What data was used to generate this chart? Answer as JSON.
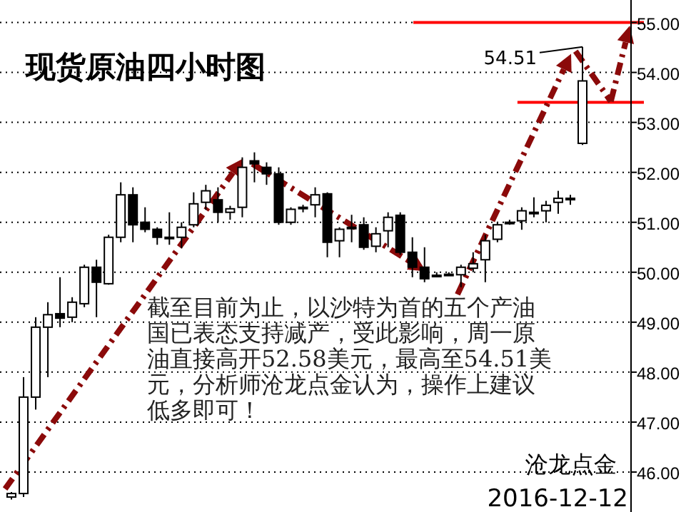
{
  "chart_data": {
    "type": "candlestick",
    "title": "现货原油四小时图",
    "categories": [
      null,
      null,
      null,
      null,
      null,
      null,
      null,
      null,
      null,
      null,
      null,
      null,
      null,
      null,
      null,
      null,
      null,
      null,
      null,
      null,
      null,
      null,
      null,
      null,
      null,
      null,
      null,
      null,
      null,
      null,
      null,
      null,
      null,
      null,
      null,
      null,
      null,
      null,
      null,
      null,
      null,
      null,
      null,
      null,
      null,
      null,
      null,
      null
    ],
    "ohlc": [
      [
        45.5,
        45.6,
        45.45,
        45.57
      ],
      [
        45.57,
        47.9,
        45.5,
        47.5
      ],
      [
        47.5,
        49.1,
        47.25,
        48.9
      ],
      [
        48.9,
        49.4,
        47.9,
        49.15
      ],
      [
        49.17,
        49.9,
        48.9,
        49.08
      ],
      [
        49.1,
        49.5,
        49.0,
        49.4
      ],
      [
        49.37,
        50.15,
        49.3,
        50.1
      ],
      [
        50.1,
        50.25,
        49.1,
        49.8
      ],
      [
        49.77,
        50.75,
        49.75,
        50.7
      ],
      [
        50.7,
        51.8,
        50.6,
        51.55
      ],
      [
        51.55,
        51.7,
        50.6,
        50.95
      ],
      [
        51.0,
        51.3,
        50.8,
        50.86
      ],
      [
        50.86,
        50.9,
        50.55,
        50.7
      ],
      [
        50.7,
        51.2,
        50.55,
        50.68
      ],
      [
        50.7,
        51.0,
        50.48,
        50.9
      ],
      [
        50.95,
        51.6,
        50.9,
        51.37
      ],
      [
        51.4,
        51.75,
        51.25,
        51.63
      ],
      [
        51.45,
        51.7,
        51.0,
        51.2
      ],
      [
        51.2,
        51.33,
        51.05,
        51.27
      ],
      [
        51.3,
        52.3,
        51.1,
        52.1
      ],
      [
        52.23,
        52.4,
        51.8,
        52.17
      ],
      [
        52.1,
        52.2,
        51.75,
        51.97
      ],
      [
        51.97,
        52.1,
        50.95,
        51.0
      ],
      [
        51.0,
        51.3,
        50.95,
        51.26
      ],
      [
        51.28,
        51.35,
        51.2,
        51.3
      ],
      [
        51.35,
        51.7,
        51.1,
        51.55
      ],
      [
        51.57,
        51.6,
        50.3,
        50.6
      ],
      [
        50.63,
        50.9,
        50.3,
        50.86
      ],
      [
        50.9,
        51.15,
        50.6,
        50.88
      ],
      [
        50.95,
        51.1,
        50.45,
        50.5
      ],
      [
        50.52,
        50.9,
        50.4,
        50.77
      ],
      [
        50.83,
        51.2,
        50.5,
        51.1
      ],
      [
        51.14,
        51.2,
        50.35,
        50.4
      ],
      [
        50.4,
        50.7,
        49.9,
        50.1
      ],
      [
        50.1,
        50.5,
        49.8,
        49.87
      ],
      [
        49.94,
        50.0,
        49.9,
        49.93
      ],
      [
        49.95,
        50.0,
        49.93,
        49.96
      ],
      [
        49.95,
        50.15,
        49.7,
        50.1
      ],
      [
        50.08,
        50.4,
        50.0,
        50.17
      ],
      [
        50.25,
        50.75,
        49.8,
        50.63
      ],
      [
        50.66,
        51.0,
        50.6,
        50.95
      ],
      [
        51.0,
        51.05,
        50.95,
        51.0
      ],
      [
        51.03,
        51.3,
        50.85,
        51.23
      ],
      [
        51.2,
        51.5,
        51.1,
        51.19
      ],
      [
        51.23,
        51.43,
        51.0,
        51.34
      ],
      [
        51.4,
        51.63,
        51.17,
        51.48
      ],
      [
        51.48,
        51.55,
        51.35,
        51.47
      ],
      [
        52.58,
        54.51,
        52.55,
        53.83
      ]
    ],
    "color": "#000000",
    "ylim": [
      45.2,
      55.45
    ],
    "yticks": [
      {
        "value": 46,
        "label": "46.00"
      },
      {
        "value": 47,
        "label": "47.00"
      },
      {
        "value": 48,
        "label": "48.00"
      },
      {
        "value": 49,
        "label": "49.00"
      },
      {
        "value": 50,
        "label": "50.00"
      },
      {
        "value": 51,
        "label": "51.00"
      },
      {
        "value": 52,
        "label": "52.00"
      },
      {
        "value": 53,
        "label": "53.00"
      },
      {
        "value": 54,
        "label": "54.00"
      },
      {
        "value": 55,
        "label": "55.00"
      }
    ],
    "tick_labels": "y",
    "grid": "y",
    "ref_lines": [
      {
        "axis": "y",
        "value": 55.0,
        "color": "#ff0000"
      },
      {
        "axis": "y",
        "value": 53.4,
        "color": "#ff0000"
      }
    ],
    "annotations": [
      "截至目前为止，以沙特为首的五个产油国已表态支持减产，受此影响，周一原油直接高开52.58美元，最高至54.51美元，分析师沧龙点金认为，操作上建议低多即可！",
      "沧龙点金",
      "2016-12-12",
      "54.51"
    ]
  }
}
